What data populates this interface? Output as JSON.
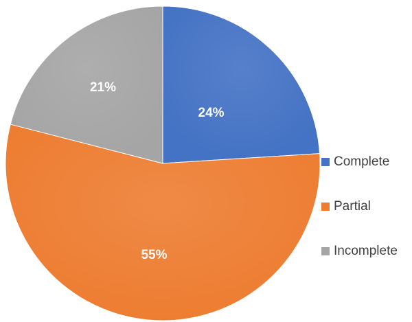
{
  "chart_data": {
    "type": "pie",
    "title": "",
    "slices": [
      {
        "name": "Complete",
        "value": 24,
        "label": "24%",
        "color": "#4472C4"
      },
      {
        "name": "Partial",
        "value": 55,
        "label": "55%",
        "color": "#ED7D31"
      },
      {
        "name": "Incomplete",
        "value": 21,
        "label": "21%",
        "color": "#A5A5A5"
      }
    ],
    "start_angle": "12 o'clock",
    "direction": "clockwise",
    "legend_position": "right",
    "legend": [
      "Complete",
      "Partial",
      "Incomplete"
    ]
  }
}
